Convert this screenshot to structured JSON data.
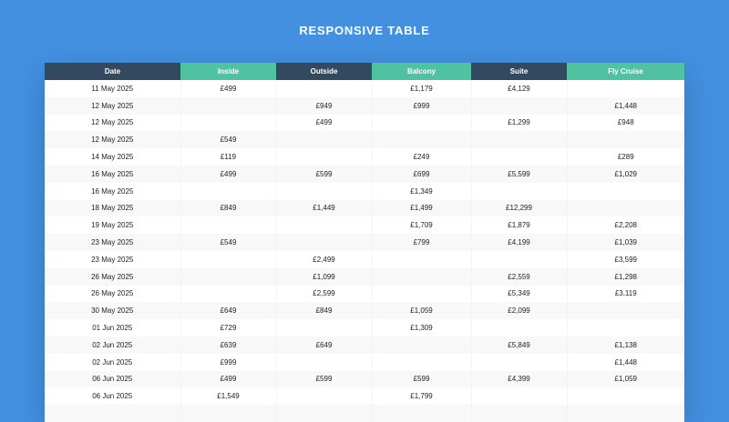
{
  "page": {
    "title": "RESPONSIVE TABLE"
  },
  "colors": {
    "background": "#4390e1",
    "header_dark": "#324960",
    "header_green": "#4fc3a1",
    "row_alt": "#f8f8f8"
  },
  "table": {
    "headers": [
      "Date",
      "Inside",
      "Outside",
      "Balcony",
      "Suite",
      "Fly Cruise"
    ],
    "rows": [
      [
        "11 May 2025",
        "£499",
        "",
        "£1,179",
        "£4,129",
        ""
      ],
      [
        "12 May 2025",
        "",
        "£949",
        "£999",
        "",
        "£1,448"
      ],
      [
        "12 May 2025",
        "",
        "£499",
        "",
        "£1,299",
        "£948"
      ],
      [
        "12 May 2025",
        "£549",
        "",
        "",
        "",
        ""
      ],
      [
        "14 May 2025",
        "£119",
        "",
        "£249",
        "",
        "£289"
      ],
      [
        "16 May 2025",
        "£499",
        "£599",
        "£699",
        "£5,599",
        "£1,029"
      ],
      [
        "16 May 2025",
        "",
        "",
        "£1,349",
        "",
        ""
      ],
      [
        "18 May 2025",
        "£849",
        "£1,449",
        "£1,499",
        "£12,299",
        ""
      ],
      [
        "19 May 2025",
        "",
        "",
        "£1,709",
        "£1,879",
        "£2,208"
      ],
      [
        "23 May 2025",
        "£549",
        "",
        "£799",
        "£4,199",
        "£1,039"
      ],
      [
        "23 May 2025",
        "",
        "£2,499",
        "",
        "",
        "£3,599"
      ],
      [
        "26 May 2025",
        "",
        "£1,099",
        "",
        "£2,559",
        "£1,298"
      ],
      [
        "26 May 2025",
        "",
        "£2,599",
        "",
        "£5,349",
        "£3,119"
      ],
      [
        "30 May 2025",
        "£649",
        "£849",
        "£1,059",
        "£2,099",
        ""
      ],
      [
        "01 Jun 2025",
        "£729",
        "",
        "£1,309",
        "",
        ""
      ],
      [
        "02 Jun 2025",
        "£639",
        "£649",
        "",
        "£5,849",
        "£1,138"
      ],
      [
        "02 Jun 2025",
        "£999",
        "",
        "",
        "",
        "£1,448"
      ],
      [
        "06 Jun 2025",
        "£499",
        "£599",
        "£599",
        "£4,399",
        "£1,059"
      ],
      [
        "06 Jun 2025",
        "£1,549",
        "",
        "£1,799",
        "",
        ""
      ],
      [
        "",
        "",
        "",
        "",
        "",
        ""
      ]
    ]
  }
}
